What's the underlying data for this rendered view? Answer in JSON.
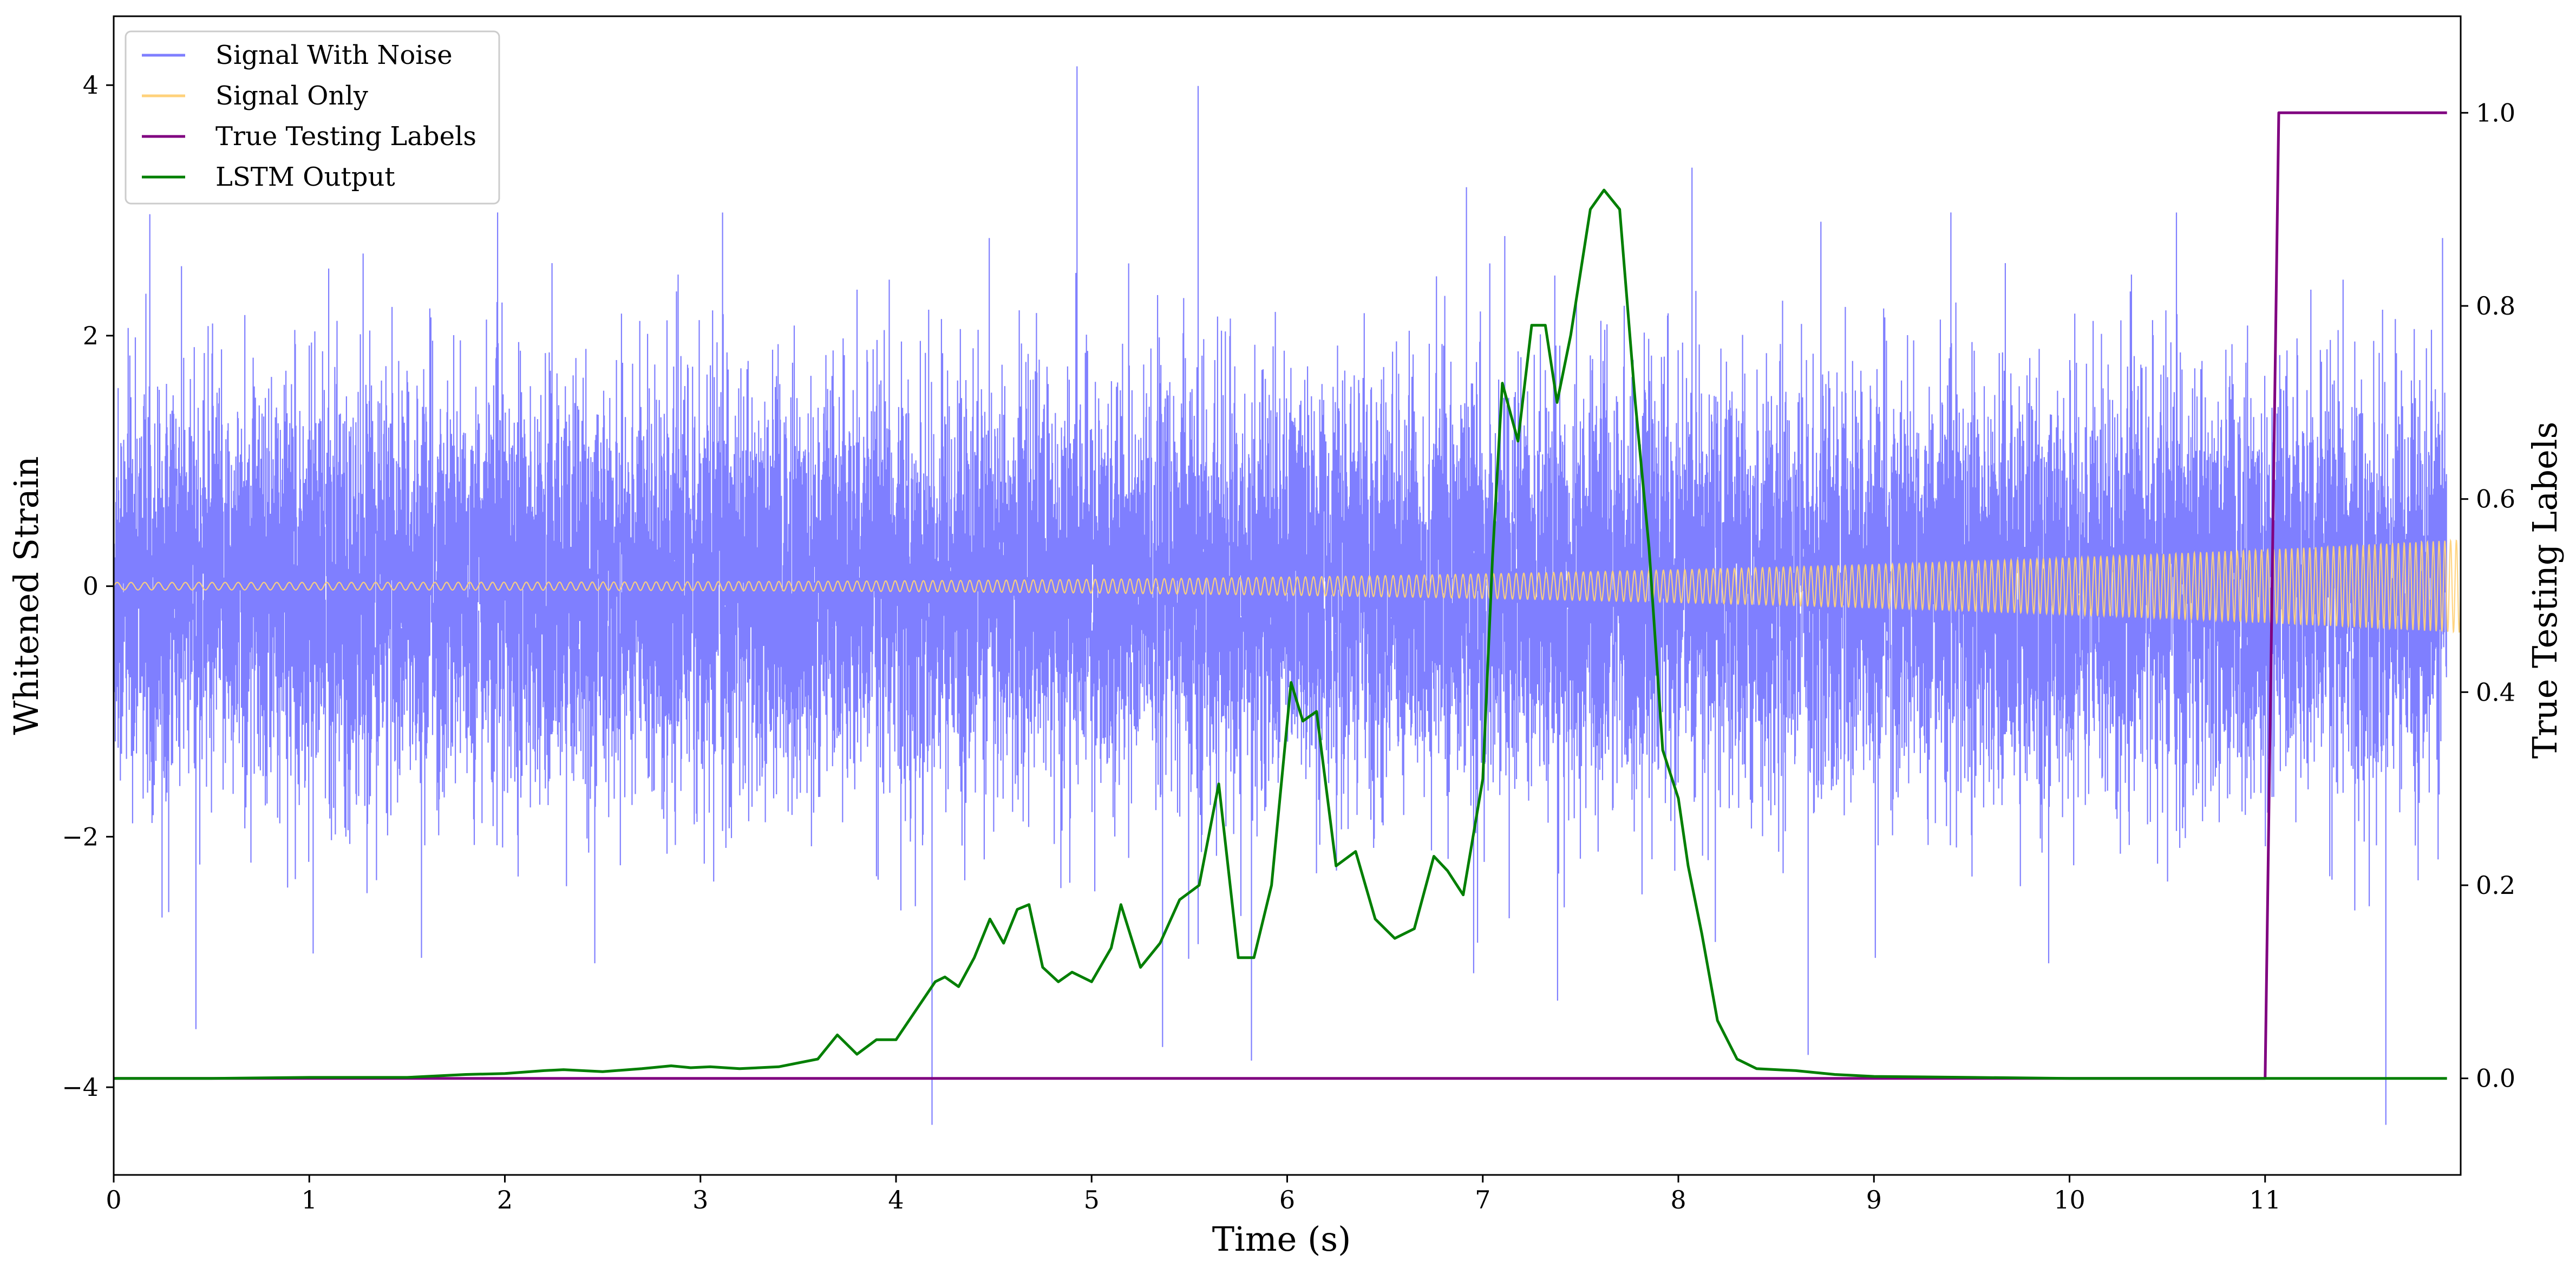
{
  "chart_data": {
    "type": "line",
    "xlabel": "Time (s)",
    "ylabel": "Whitened Strain",
    "ylabel_right": "True Testing Labels",
    "xlim": [
      0,
      12
    ],
    "ylim_left": [
      -4.7,
      4.55
    ],
    "ylim_right": [
      -0.1,
      1.1
    ],
    "x_ticks": [
      "0",
      "1",
      "2",
      "3",
      "4",
      "5",
      "6",
      "7",
      "8",
      "9",
      "10",
      "11"
    ],
    "y_left_ticks": [
      "4",
      "2",
      "0",
      "−2",
      "−4"
    ],
    "y_left_tick_values": [
      4,
      2,
      0,
      -2,
      -4
    ],
    "y_right_ticks": [
      "1.0",
      "0.8",
      "0.6",
      "0.4",
      "0.2",
      "0.0"
    ],
    "y_right_tick_values": [
      1.0,
      0.8,
      0.6,
      0.4,
      0.2,
      0.0
    ],
    "legend_position": "top-left",
    "grid": false,
    "legend": [
      {
        "name": "Signal With Noise",
        "color": "#7f7fff"
      },
      {
        "name": "Signal Only",
        "color": "#ffd27a"
      },
      {
        "name": "True Testing Labels",
        "color": "#800080"
      },
      {
        "name": "LSTM Output",
        "color": "#007f00"
      }
    ],
    "series": [
      {
        "name": "Signal With Noise",
        "axis": "left",
        "color": "#7f7fff",
        "description": "Gaussian-like noise, roughly ±2 typical with spikes to about ±4",
        "approx_range": [
          -4.3,
          4.15
        ]
      },
      {
        "name": "Signal Only",
        "axis": "left",
        "color": "#ffd27a",
        "description": "chirp oscillation whose amplitude grows from about 0.03 to about 0.37 at t=12",
        "amplitude_start": 0.03,
        "amplitude_end": 0.37
      },
      {
        "name": "True Testing Labels",
        "axis": "right",
        "color": "#800080",
        "x": [
          0,
          11.0,
          11.07,
          11.93
        ],
        "y": [
          0.0,
          0.0,
          1.0,
          1.0
        ]
      },
      {
        "name": "LSTM Output",
        "axis": "right",
        "color": "#007f00",
        "x": [
          0,
          0.5,
          1.0,
          1.5,
          1.8,
          2.0,
          2.2,
          2.3,
          2.5,
          2.7,
          2.85,
          2.95,
          3.05,
          3.2,
          3.4,
          3.6,
          3.7,
          3.8,
          3.9,
          4.0,
          4.1,
          4.2,
          4.25,
          4.32,
          4.4,
          4.48,
          4.55,
          4.62,
          4.68,
          4.75,
          4.83,
          4.9,
          5.0,
          5.1,
          5.15,
          5.25,
          5.35,
          5.45,
          5.55,
          5.65,
          5.75,
          5.83,
          5.92,
          6.02,
          6.08,
          6.15,
          6.25,
          6.35,
          6.45,
          6.55,
          6.65,
          6.75,
          6.82,
          6.9,
          7.0,
          7.05,
          7.1,
          7.18,
          7.25,
          7.32,
          7.38,
          7.45,
          7.55,
          7.62,
          7.7,
          7.78,
          7.85,
          7.92,
          8.0,
          8.05,
          8.12,
          8.2,
          8.3,
          8.4,
          8.6,
          8.8,
          9.0,
          9.5,
          10.0,
          11.0,
          11.93
        ],
        "y": [
          0.0,
          0.0,
          0.001,
          0.001,
          0.004,
          0.005,
          0.008,
          0.009,
          0.007,
          0.01,
          0.013,
          0.011,
          0.012,
          0.01,
          0.012,
          0.02,
          0.045,
          0.025,
          0.04,
          0.04,
          0.07,
          0.1,
          0.105,
          0.095,
          0.125,
          0.165,
          0.14,
          0.175,
          0.18,
          0.115,
          0.1,
          0.11,
          0.1,
          0.135,
          0.18,
          0.115,
          0.14,
          0.185,
          0.2,
          0.305,
          0.125,
          0.125,
          0.2,
          0.41,
          0.37,
          0.38,
          0.22,
          0.235,
          0.165,
          0.145,
          0.155,
          0.23,
          0.215,
          0.19,
          0.31,
          0.54,
          0.72,
          0.66,
          0.78,
          0.78,
          0.7,
          0.77,
          0.9,
          0.92,
          0.9,
          0.7,
          0.55,
          0.34,
          0.29,
          0.22,
          0.15,
          0.06,
          0.02,
          0.01,
          0.008,
          0.004,
          0.002,
          0.001,
          0.0,
          0.0,
          0.0
        ]
      }
    ]
  }
}
